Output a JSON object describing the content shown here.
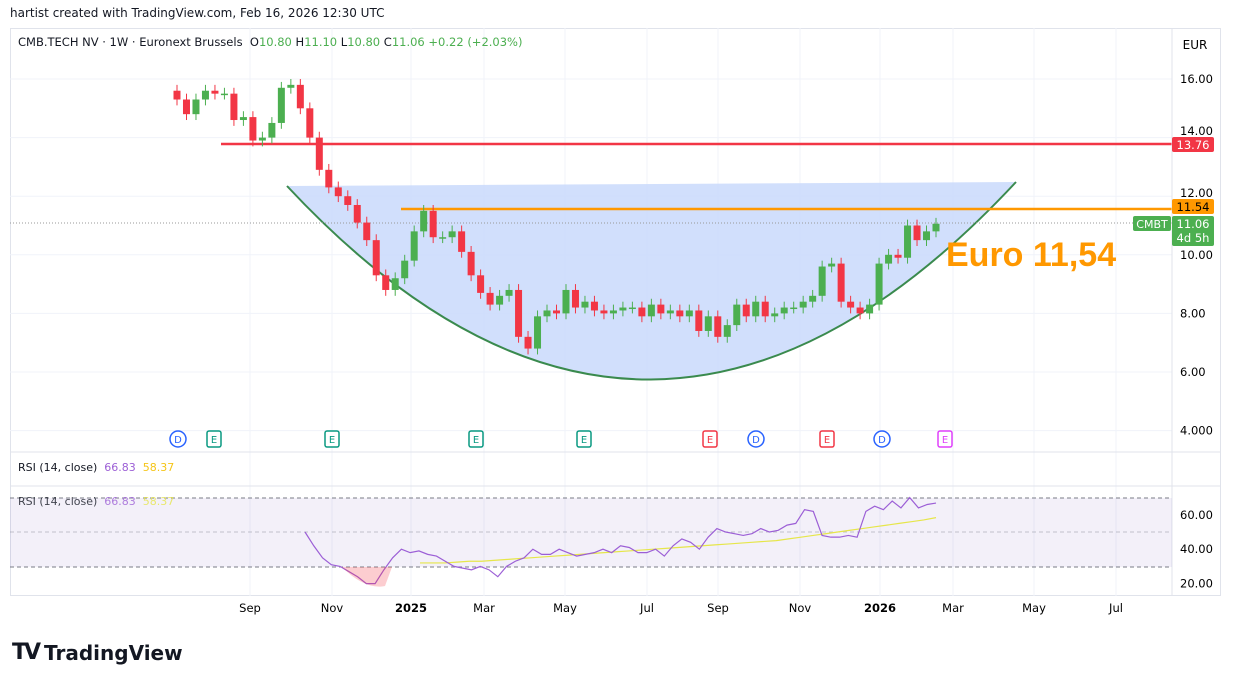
{
  "credit": "hartist created with TradingView.com, Feb 16, 2026 12:30 UTC",
  "legend": {
    "symbol": "CMB.TECH NV · 1W · Euronext Brussels",
    "o_label": "O",
    "o": "10.80",
    "h_label": "H",
    "h": "11.10",
    "l_label": "L",
    "l": "10.80",
    "c_label": "C",
    "c": "11.06",
    "change": "+0.22 (+2.03%)"
  },
  "currency": "EUR",
  "annotation": "Euro 11,54",
  "price_labels": {
    "red_line": "13.76",
    "orange_line": "11.54",
    "last": "11.06",
    "countdown": "4d 5h",
    "symbol_tag": "CMBT"
  },
  "colors": {
    "up": "#4caf50",
    "down": "#f23645",
    "resistance": "#f23645",
    "target": "#ff9800",
    "cup_fill": "#c9d9fb",
    "cup_stroke": "#3a8a4e",
    "rsi": "#9c5fd6",
    "rsi_ma": "#e6e64a"
  },
  "rsi_legend": {
    "label": "RSI (14, close)",
    "value": "66.83",
    "ma": "58.37"
  },
  "events": [
    {
      "t": "D",
      "c": "#2962ff"
    },
    {
      "t": "E",
      "c": "#089981"
    },
    {
      "t": "E",
      "c": "#089981"
    },
    {
      "t": "E",
      "c": "#089981"
    },
    {
      "t": "E",
      "c": "#089981"
    },
    {
      "t": "E",
      "c": "#f23645"
    },
    {
      "t": "D",
      "c": "#2962ff"
    },
    {
      "t": "E",
      "c": "#f23645"
    },
    {
      "t": "D",
      "c": "#2962ff"
    },
    {
      "t": "E",
      "c": "#e040fb"
    }
  ],
  "logo": "TradingView",
  "chart_data": [
    {
      "type": "candlestick",
      "title": "CMB.TECH NV · 1W · Euronext Brussels",
      "y_ticks": [
        "16.00",
        "14.00",
        "12.00",
        "10.00",
        "8.00",
        "6.00",
        "4.000"
      ],
      "ylim": [
        3.5,
        17.5
      ],
      "x_ticks": [
        "Sep",
        "Nov",
        "2025",
        "Mar",
        "May",
        "Jul",
        "Sep",
        "Nov",
        "2026",
        "Mar",
        "May",
        "Jul"
      ],
      "closes": [
        15.3,
        14.8,
        15.3,
        15.6,
        15.5,
        15.5,
        14.6,
        14.7,
        13.9,
        14.0,
        14.5,
        15.7,
        15.8,
        15.0,
        14.0,
        12.9,
        12.3,
        12.0,
        11.7,
        11.1,
        10.5,
        9.3,
        8.8,
        9.2,
        9.8,
        10.8,
        11.5,
        10.6,
        10.6,
        10.8,
        10.1,
        9.3,
        8.7,
        8.3,
        8.6,
        8.8,
        7.2,
        6.8,
        7.9,
        8.1,
        8.0,
        8.8,
        8.2,
        8.4,
        8.1,
        8.0,
        8.1,
        8.2,
        8.2,
        7.9,
        8.3,
        8.0,
        8.1,
        7.9,
        8.1,
        7.4,
        7.9,
        7.2,
        7.6,
        8.3,
        7.9,
        8.4,
        7.9,
        8.0,
        8.2,
        8.2,
        8.4,
        8.6,
        9.6,
        9.7,
        8.4,
        8.2,
        8.0,
        8.3,
        9.7,
        10.0,
        9.9,
        11.0,
        10.5,
        10.8,
        11.06
      ],
      "horizontal_lines": [
        {
          "value": 13.76
        },
        {
          "value": 11.54
        }
      ]
    },
    {
      "type": "line",
      "title": "RSI (14, close)",
      "y_ticks": [
        "60.00",
        "40.00",
        "20.00"
      ],
      "bands": [
        30,
        50,
        70
      ],
      "series": [
        {
          "name": "RSI",
          "values": [
            50,
            42,
            35,
            31,
            30,
            27,
            24,
            20,
            20,
            28,
            35,
            40,
            38,
            39,
            37,
            36,
            33,
            30,
            29,
            28,
            30,
            28,
            24,
            30,
            33,
            35,
            40,
            37,
            37,
            40,
            38,
            36,
            37,
            38,
            40,
            38,
            42,
            41,
            38,
            38,
            40,
            36,
            42,
            46,
            44,
            40,
            47,
            52,
            50,
            49,
            48,
            49,
            52,
            50,
            51,
            54,
            55,
            63,
            62,
            48,
            47,
            47,
            48,
            47,
            62,
            65,
            63,
            68,
            64,
            70,
            64,
            66,
            66.83
          ]
        },
        {
          "name": "MA",
          "values": [
            32,
            32,
            32,
            32.5,
            33,
            33,
            33.5,
            34,
            34.5,
            35,
            35.5,
            36,
            36.5,
            37,
            37.5,
            38,
            38.5,
            39,
            39.5,
            40,
            40.5,
            41,
            41.5,
            42,
            42.5,
            43,
            43.5,
            44,
            44.5,
            45,
            46,
            47,
            48,
            49,
            50,
            51,
            52,
            53,
            54,
            55,
            56,
            57,
            58.37
          ]
        }
      ]
    }
  ]
}
